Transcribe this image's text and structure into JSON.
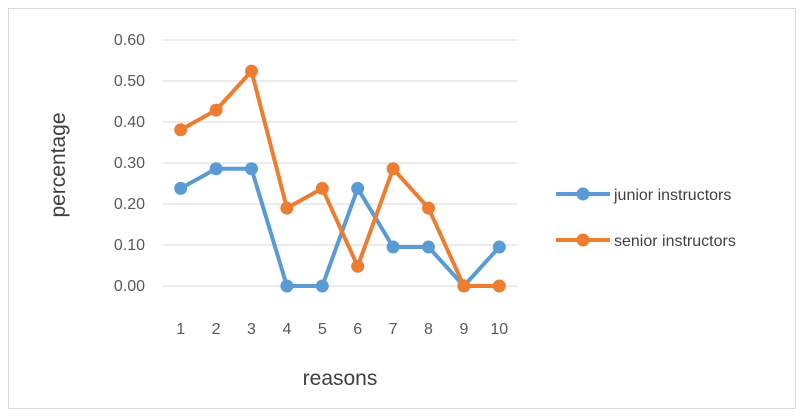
{
  "chart_data": {
    "type": "line",
    "title": "",
    "xlabel": "reasons",
    "ylabel": "percentage",
    "categories": [
      "1",
      "2",
      "3",
      "4",
      "5",
      "6",
      "7",
      "8",
      "9",
      "10"
    ],
    "y_ticks": [
      "0.00",
      "0.10",
      "0.20",
      "0.30",
      "0.40",
      "0.50",
      "0.60"
    ],
    "ylim": [
      0,
      0.6
    ],
    "grid": true,
    "legend_position": "right",
    "series": [
      {
        "name": "junior instructors",
        "color": "#5b9bd5",
        "values": [
          0.238,
          0.286,
          0.286,
          0.0,
          0.0,
          0.238,
          0.095,
          0.095,
          0.0,
          0.095
        ]
      },
      {
        "name": "senior instructors",
        "color": "#ed7d31",
        "values": [
          0.381,
          0.429,
          0.524,
          0.19,
          0.238,
          0.048,
          0.286,
          0.19,
          0.0,
          0.0
        ]
      }
    ]
  }
}
